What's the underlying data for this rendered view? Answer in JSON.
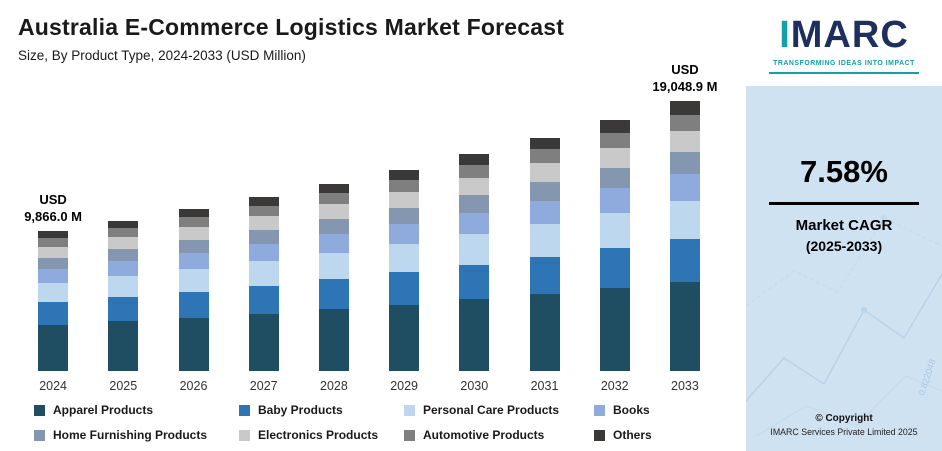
{
  "header": {
    "title": "Australia E-Commerce Logistics Market Forecast",
    "subtitle": "Size, By Product Type, 2024-2033 (USD Million)"
  },
  "chart_data": {
    "type": "bar",
    "stacked": true,
    "title": "Australia E-Commerce Logistics Market Forecast",
    "subtitle": "Size, By Product Type, 2024-2033 (USD Million)",
    "xlabel": "",
    "ylabel": "USD Million",
    "ylim": [
      0,
      20000
    ],
    "grid": false,
    "legend_position": "bottom",
    "categories": [
      "2024",
      "2025",
      "2026",
      "2027",
      "2028",
      "2029",
      "2030",
      "2031",
      "2032",
      "2033"
    ],
    "totals": [
      9866.0,
      10613.8,
      11418.4,
      12284.0,
      13215.1,
      14217.0,
      15294.8,
      16454.5,
      17701.8,
      19048.9
    ],
    "first_bar_label": [
      "USD",
      "9,866.0 M"
    ],
    "last_bar_label": [
      "USD",
      "19,048.9 M"
    ],
    "series": [
      {
        "name": "Apparel Products",
        "color": "#1f4e63",
        "values": [
          3255.8,
          3502.6,
          3768.1,
          4053.7,
          4361.0,
          4691.6,
          5047.3,
          5430.0,
          5841.6,
          6286.1
        ]
      },
      {
        "name": "Baby Products",
        "color": "#2e75b6",
        "values": [
          1578.6,
          1698.2,
          1826.9,
          1965.4,
          2114.4,
          2274.7,
          2447.2,
          2632.7,
          2832.3,
          3047.8
        ]
      },
      {
        "name": "Personal Care Products",
        "color": "#bdd7ee",
        "values": [
          1381.2,
          1485.9,
          1598.6,
          1719.8,
          1850.1,
          1990.4,
          2141.3,
          2303.6,
          2478.3,
          2666.8
        ]
      },
      {
        "name": "Books",
        "color": "#8faadc",
        "values": [
          986.6,
          1061.4,
          1141.8,
          1228.4,
          1321.5,
          1421.7,
          1529.5,
          1645.5,
          1770.2,
          1904.9
        ]
      },
      {
        "name": "Home Furnishing Products",
        "color": "#8496b0",
        "values": [
          789.3,
          849.1,
          913.5,
          982.7,
          1057.2,
          1137.4,
          1223.6,
          1316.4,
          1416.1,
          1523.9
        ]
      },
      {
        "name": "Electronics Products",
        "color": "#c9c9c9",
        "values": [
          789.3,
          849.1,
          913.5,
          982.7,
          1057.2,
          1137.4,
          1223.6,
          1316.4,
          1416.1,
          1523.9
        ]
      },
      {
        "name": "Automotive Products",
        "color": "#7f7f7f",
        "values": [
          592.0,
          636.8,
          685.1,
          737.0,
          792.9,
          853.0,
          917.7,
          987.3,
          1062.1,
          1142.9
        ]
      },
      {
        "name": "Others",
        "color": "#3b3838",
        "values": [
          493.3,
          530.7,
          570.9,
          614.2,
          660.8,
          710.9,
          764.7,
          822.7,
          885.1,
          952.4
        ]
      }
    ]
  },
  "sidebar": {
    "logo_text": "IMARC",
    "logo_tagline": "TRANSFORMING IDEAS INTO IMPACT",
    "cagr_value": "7.58%",
    "cagr_label_line1": "Market CAGR",
    "cagr_label_line2": "(2025-2033)",
    "copyright_line1": "© Copyright",
    "copyright_line2": "IMARC Services Private Limited 2025",
    "watermark_number": "0.822048",
    "accent_teal": "#14a0a8",
    "brand_navy": "#1c2f5e",
    "panel_blue": "#cfe2f2"
  }
}
